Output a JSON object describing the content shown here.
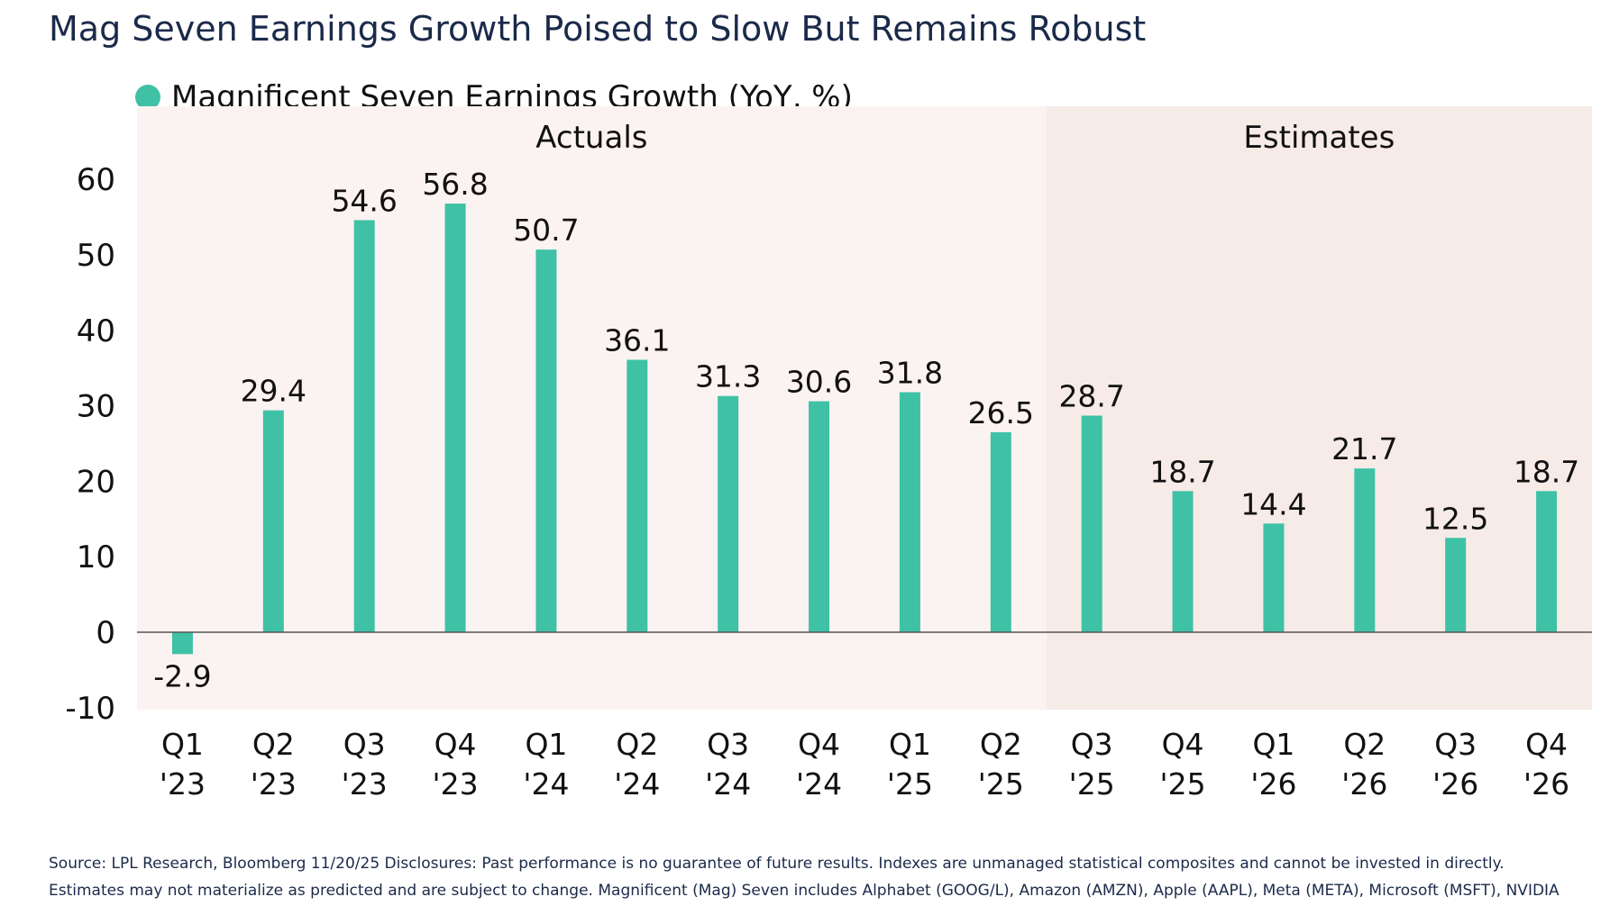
{
  "chart_data": {
    "type": "bar",
    "title": "Mag Seven Earnings Growth Poised to Slow But Remains Robust",
    "legend": {
      "label": "Magnificent Seven Earnings Growth (YoY, %)",
      "color": "#3fc1a6",
      "placement": "top-left"
    },
    "categories": [
      [
        "Q1",
        "'23"
      ],
      [
        "Q2",
        "'23"
      ],
      [
        "Q3",
        "'23"
      ],
      [
        "Q4",
        "'23"
      ],
      [
        "Q1",
        "'24"
      ],
      [
        "Q2",
        "'24"
      ],
      [
        "Q3",
        "'24"
      ],
      [
        "Q4",
        "'24"
      ],
      [
        "Q1",
        "'25"
      ],
      [
        "Q2",
        "'25"
      ],
      [
        "Q3",
        "'25"
      ],
      [
        "Q4",
        "'25"
      ],
      [
        "Q1",
        "'26"
      ],
      [
        "Q2",
        "'26"
      ],
      [
        "Q3",
        "'26"
      ],
      [
        "Q4",
        "'26"
      ]
    ],
    "values": [
      -2.9,
      29.4,
      54.6,
      56.8,
      50.7,
      36.1,
      31.3,
      30.6,
      31.8,
      26.5,
      28.7,
      18.7,
      14.4,
      21.7,
      12.5,
      18.7
    ],
    "data_labels": [
      "-2.9",
      "29.4",
      "54.6",
      "56.8",
      "50.7",
      "36.1",
      "31.3",
      "30.6",
      "31.8",
      "26.5",
      "28.7",
      "18.7",
      "14.4",
      "21.7",
      "12.5",
      "18.7"
    ],
    "ylim": [
      -10,
      60
    ],
    "yticks": [
      -10,
      0,
      10,
      20,
      30,
      40,
      50,
      60
    ],
    "grid": false,
    "regions": [
      {
        "label": "Actuals",
        "start_index": 0,
        "end_index": 9
      },
      {
        "label": "Estimates",
        "start_index": 10,
        "end_index": 15
      }
    ],
    "colors": {
      "bar": "#3fc1a6",
      "actuals_bg": "#fbf3f1",
      "estimates_bg": "#f6ebe7"
    }
  },
  "footnote": "Source: LPL Research, Bloomberg 11/20/25 Disclosures: Past performance is no guarantee of future results. Indexes are unmanaged statistical composites and cannot be invested in directly. Estimates may not materialize as predicted and are subject to change. Magnificent (Mag) Seven includes Alphabet (GOOG/L), Amazon (AMZN), Apple (AAPL), Meta (META), Microsoft (MSFT), NVIDIA (NVDA), and Tesla (TSLA)."
}
